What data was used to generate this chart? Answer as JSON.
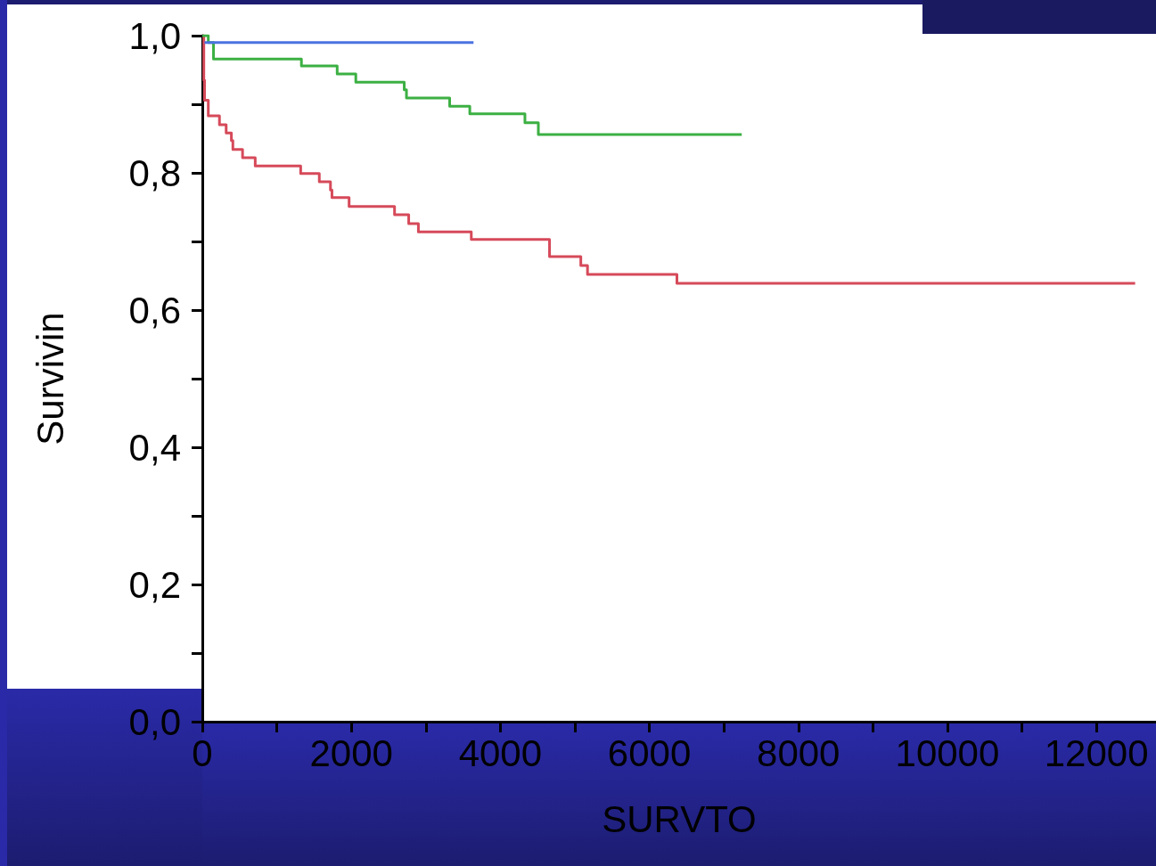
{
  "chart_data": {
    "type": "step",
    "xlabel": "SURVTO",
    "ylabel": "Survivin",
    "grid": false,
    "xlim": [
      0,
      12800
    ],
    "xticks": [
      0,
      {
        "value": 1000,
        "label": null
      },
      2000,
      {
        "value": 3000,
        "label": null
      },
      4000,
      {
        "value": 5000,
        "label": null
      },
      6000,
      {
        "value": 7000,
        "label": null
      },
      8000,
      {
        "value": 9000,
        "label": null
      },
      10000,
      {
        "value": 11000,
        "label": null
      },
      12000
    ],
    "ylim": [
      0,
      1
    ],
    "yticks": [
      {
        "value": 0,
        "label": "0,0"
      },
      {
        "value": 0.1,
        "label": null
      },
      {
        "value": 0.2,
        "label": "0,2"
      },
      {
        "value": 0.3,
        "label": null
      },
      {
        "value": 0.4,
        "label": "0,4"
      },
      {
        "value": 0.5,
        "label": null
      },
      {
        "value": 0.6,
        "label": "0,6"
      },
      {
        "value": 0.7,
        "label": null
      },
      {
        "value": 0.8,
        "label": "0,8"
      },
      {
        "value": 0.9,
        "label": null
      },
      {
        "value": 1,
        "label": "1,0"
      }
    ],
    "series": [
      {
        "color": "#4a72e0",
        "x": [
          30,
          3640
        ],
        "values": [
          0.99,
          0.99
        ]
      },
      {
        "color": "#3cb043",
        "x": [
          0,
          80,
          150,
          1330,
          1810,
          2060,
          2710,
          2740,
          3320,
          3590,
          4330,
          4510,
          7240
        ],
        "values": [
          1,
          0.99,
          0.966,
          0.956,
          0.944,
          0.932,
          0.921,
          0.909,
          0.897,
          0.886,
          0.873,
          0.856,
          0.856
        ]
      },
      {
        "color": "#d64a5a",
        "x": [
          0,
          20,
          30,
          80,
          230,
          320,
          390,
          410,
          540,
          710,
          1320,
          1570,
          1720,
          1740,
          1970,
          2580,
          2770,
          2900,
          3610,
          4660,
          5080,
          5170,
          6370,
          12520
        ],
        "values": [
          1,
          0.935,
          0.906,
          0.883,
          0.87,
          0.858,
          0.847,
          0.834,
          0.822,
          0.81,
          0.799,
          0.787,
          0.775,
          0.764,
          0.751,
          0.739,
          0.726,
          0.714,
          0.703,
          0.678,
          0.665,
          0.652,
          0.639,
          0.639
        ]
      }
    ]
  }
}
